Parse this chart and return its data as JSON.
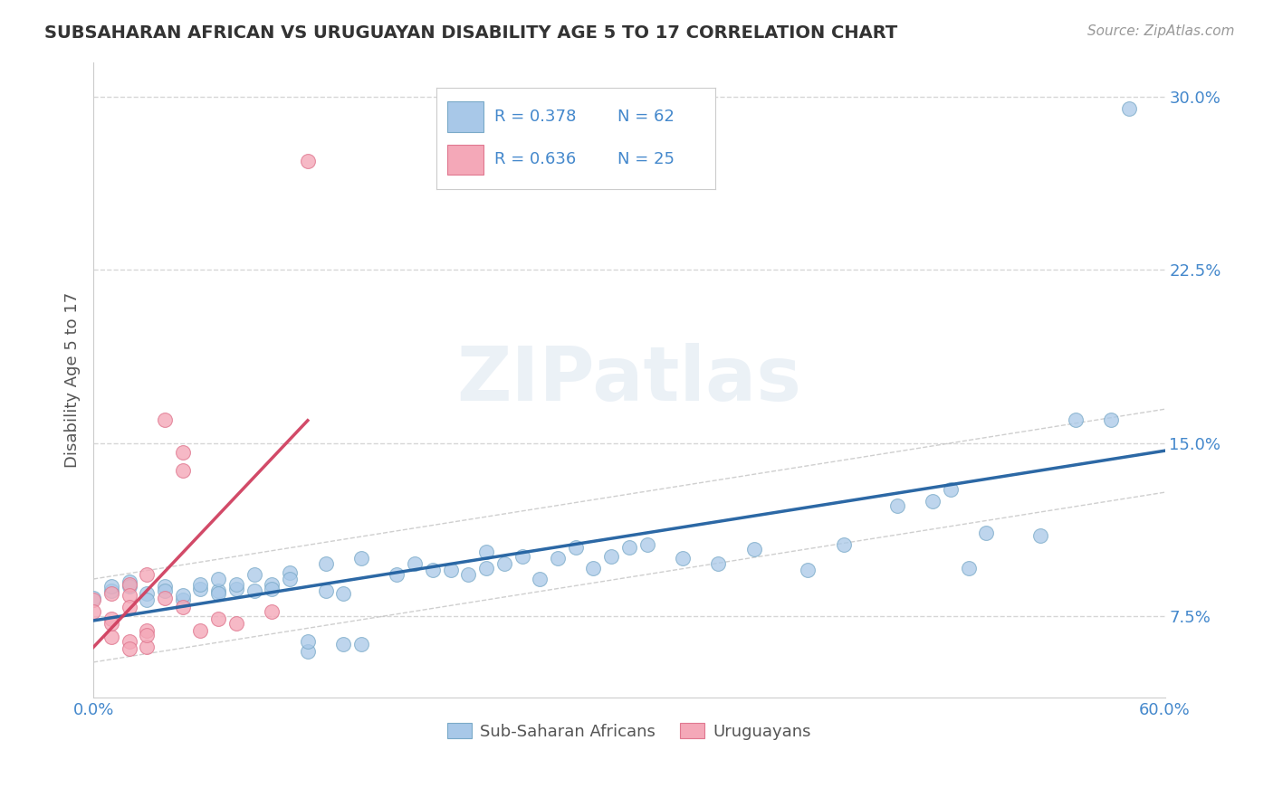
{
  "title": "SUBSAHARAN AFRICAN VS URUGUAYAN DISABILITY AGE 5 TO 17 CORRELATION CHART",
  "source": "Source: ZipAtlas.com",
  "ylabel": "Disability Age 5 to 17",
  "xlim": [
    0.0,
    0.6
  ],
  "ylim": [
    0.04,
    0.315
  ],
  "yticks": [
    0.075,
    0.15,
    0.225,
    0.3
  ],
  "ytick_labels": [
    "7.5%",
    "15.0%",
    "22.5%",
    "30.0%"
  ],
  "xtick_left_label": "0.0%",
  "xtick_right_label": "60.0%",
  "legend_labels": [
    "Sub-Saharan Africans",
    "Uruguayans"
  ],
  "blue_R": "0.378",
  "blue_N": "62",
  "pink_R": "0.636",
  "pink_N": "25",
  "blue_color": "#a8c8e8",
  "pink_color": "#f4a8b8",
  "blue_edge_color": "#7aaac8",
  "pink_edge_color": "#e07890",
  "blue_line_color": "#2060a0",
  "pink_line_color": "#d04060",
  "conf_band_color": "#bbbbbb",
  "watermark": "ZIPatlas",
  "title_color": "#333333",
  "axis_label_color": "#555555",
  "tick_color": "#4488cc",
  "right_tick_color": "#4488cc",
  "legend_text_color": "#4488cc",
  "grid_color": "#cccccc",
  "blue_scatter": [
    [
      0.0,
      0.083
    ],
    [
      0.01,
      0.086
    ],
    [
      0.01,
      0.088
    ],
    [
      0.02,
      0.09
    ],
    [
      0.02,
      0.088
    ],
    [
      0.03,
      0.085
    ],
    [
      0.03,
      0.082
    ],
    [
      0.04,
      0.088
    ],
    [
      0.04,
      0.086
    ],
    [
      0.05,
      0.082
    ],
    [
      0.05,
      0.084
    ],
    [
      0.06,
      0.087
    ],
    [
      0.06,
      0.089
    ],
    [
      0.07,
      0.086
    ],
    [
      0.07,
      0.085
    ],
    [
      0.07,
      0.091
    ],
    [
      0.08,
      0.087
    ],
    [
      0.08,
      0.089
    ],
    [
      0.09,
      0.086
    ],
    [
      0.09,
      0.093
    ],
    [
      0.1,
      0.089
    ],
    [
      0.1,
      0.087
    ],
    [
      0.11,
      0.094
    ],
    [
      0.11,
      0.091
    ],
    [
      0.12,
      0.06
    ],
    [
      0.12,
      0.064
    ],
    [
      0.13,
      0.086
    ],
    [
      0.13,
      0.098
    ],
    [
      0.14,
      0.085
    ],
    [
      0.14,
      0.063
    ],
    [
      0.15,
      0.1
    ],
    [
      0.15,
      0.063
    ],
    [
      0.17,
      0.093
    ],
    [
      0.18,
      0.098
    ],
    [
      0.19,
      0.095
    ],
    [
      0.2,
      0.095
    ],
    [
      0.21,
      0.093
    ],
    [
      0.22,
      0.096
    ],
    [
      0.22,
      0.103
    ],
    [
      0.23,
      0.098
    ],
    [
      0.24,
      0.101
    ],
    [
      0.25,
      0.091
    ],
    [
      0.26,
      0.1
    ],
    [
      0.27,
      0.105
    ],
    [
      0.28,
      0.096
    ],
    [
      0.29,
      0.101
    ],
    [
      0.3,
      0.105
    ],
    [
      0.31,
      0.106
    ],
    [
      0.33,
      0.1
    ],
    [
      0.35,
      0.098
    ],
    [
      0.37,
      0.104
    ],
    [
      0.4,
      0.095
    ],
    [
      0.42,
      0.106
    ],
    [
      0.45,
      0.123
    ],
    [
      0.47,
      0.125
    ],
    [
      0.48,
      0.13
    ],
    [
      0.49,
      0.096
    ],
    [
      0.5,
      0.111
    ],
    [
      0.53,
      0.11
    ],
    [
      0.55,
      0.16
    ],
    [
      0.57,
      0.16
    ],
    [
      0.58,
      0.295
    ]
  ],
  "pink_scatter": [
    [
      0.0,
      0.082
    ],
    [
      0.0,
      0.077
    ],
    [
      0.01,
      0.085
    ],
    [
      0.01,
      0.074
    ],
    [
      0.01,
      0.066
    ],
    [
      0.01,
      0.072
    ],
    [
      0.02,
      0.089
    ],
    [
      0.02,
      0.084
    ],
    [
      0.02,
      0.079
    ],
    [
      0.02,
      0.064
    ],
    [
      0.02,
      0.061
    ],
    [
      0.03,
      0.093
    ],
    [
      0.03,
      0.069
    ],
    [
      0.03,
      0.062
    ],
    [
      0.03,
      0.067
    ],
    [
      0.04,
      0.083
    ],
    [
      0.04,
      0.16
    ],
    [
      0.05,
      0.146
    ],
    [
      0.05,
      0.138
    ],
    [
      0.05,
      0.079
    ],
    [
      0.06,
      0.069
    ],
    [
      0.07,
      0.074
    ],
    [
      0.08,
      0.072
    ],
    [
      0.1,
      0.077
    ],
    [
      0.12,
      0.272
    ]
  ]
}
